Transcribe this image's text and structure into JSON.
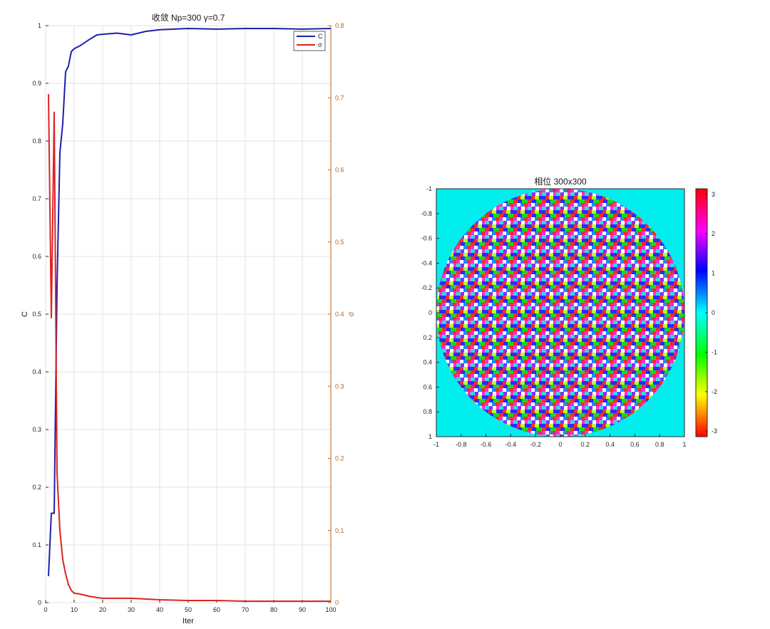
{
  "chart_data": [
    {
      "type": "line",
      "title": "收敛 Np=300 γ=0.7",
      "xlabel": "Iter",
      "ylabel_left": "C",
      "ylabel_right": "σ",
      "xlim": [
        0,
        100
      ],
      "ylim_left": [
        0,
        1
      ],
      "ylim_right": [
        0,
        0.8
      ],
      "x_ticks": [
        "0",
        "10",
        "20",
        "30",
        "40",
        "50",
        "60",
        "70",
        "80",
        "90",
        "100"
      ],
      "y_left_ticks": [
        "0",
        "0.1",
        "0.2",
        "0.3",
        "0.4",
        "0.5",
        "0.6",
        "0.7",
        "0.8",
        "0.9",
        "1"
      ],
      "y_right_ticks": [
        "0",
        "0.1",
        "0.2",
        "0.3",
        "0.4",
        "0.5",
        "0.6",
        "0.7",
        "0.8"
      ],
      "grid": true,
      "legend_position": "top-right",
      "colors": {
        "c": "#1f1fa8",
        "sigma": "#dd2222",
        "right_axis": "#b5651d"
      },
      "series": [
        {
          "name": "C",
          "axis": "left",
          "x": [
            1,
            2,
            3,
            4,
            5,
            6,
            7,
            8,
            9,
            10,
            12,
            15,
            18,
            20,
            25,
            30,
            35,
            40,
            50,
            60,
            70,
            80,
            90,
            100
          ],
          "values": [
            0.046,
            0.155,
            0.155,
            0.55,
            0.78,
            0.83,
            0.92,
            0.93,
            0.955,
            0.96,
            0.965,
            0.975,
            0.984,
            0.985,
            0.987,
            0.984,
            0.99,
            0.993,
            0.995,
            0.994,
            0.995,
            0.995,
            0.994,
            0.995
          ]
        },
        {
          "name": "σ",
          "axis": "right",
          "x": [
            1,
            2,
            3,
            4,
            5,
            6,
            7,
            8,
            9,
            10,
            12,
            15,
            18,
            20,
            25,
            30,
            35,
            40,
            50,
            60,
            70,
            80,
            90,
            100
          ],
          "values": [
            0.705,
            0.395,
            0.68,
            0.18,
            0.1,
            0.06,
            0.04,
            0.025,
            0.017,
            0.013,
            0.012,
            0.009,
            0.007,
            0.006,
            0.006,
            0.006,
            0.005,
            0.004,
            0.003,
            0.003,
            0.002,
            0.002,
            0.002,
            0.002
          ]
        }
      ]
    },
    {
      "type": "heatmap",
      "title": "相位 300x300",
      "xlim": [
        -1,
        1
      ],
      "ylim": [
        -1,
        1
      ],
      "x_ticks": [
        "-1",
        "-0.8",
        "-0.6",
        "-0.4",
        "-0.2",
        "0",
        "0.2",
        "0.4",
        "0.6",
        "0.8",
        "1"
      ],
      "y_ticks": [
        "-1",
        "-0.8",
        "-0.6",
        "-0.4",
        "-0.2",
        "0",
        "0.2",
        "0.4",
        "0.6",
        "0.8",
        "1"
      ],
      "colorbar_ticks": [
        "3",
        "2",
        "1",
        "0",
        "-1",
        "-2",
        "-3"
      ],
      "colorbar_range": [
        -3.14,
        3.14
      ],
      "colormap": "hsv",
      "background_color": "#00eeee",
      "aperture": "circle radius 1"
    }
  ]
}
